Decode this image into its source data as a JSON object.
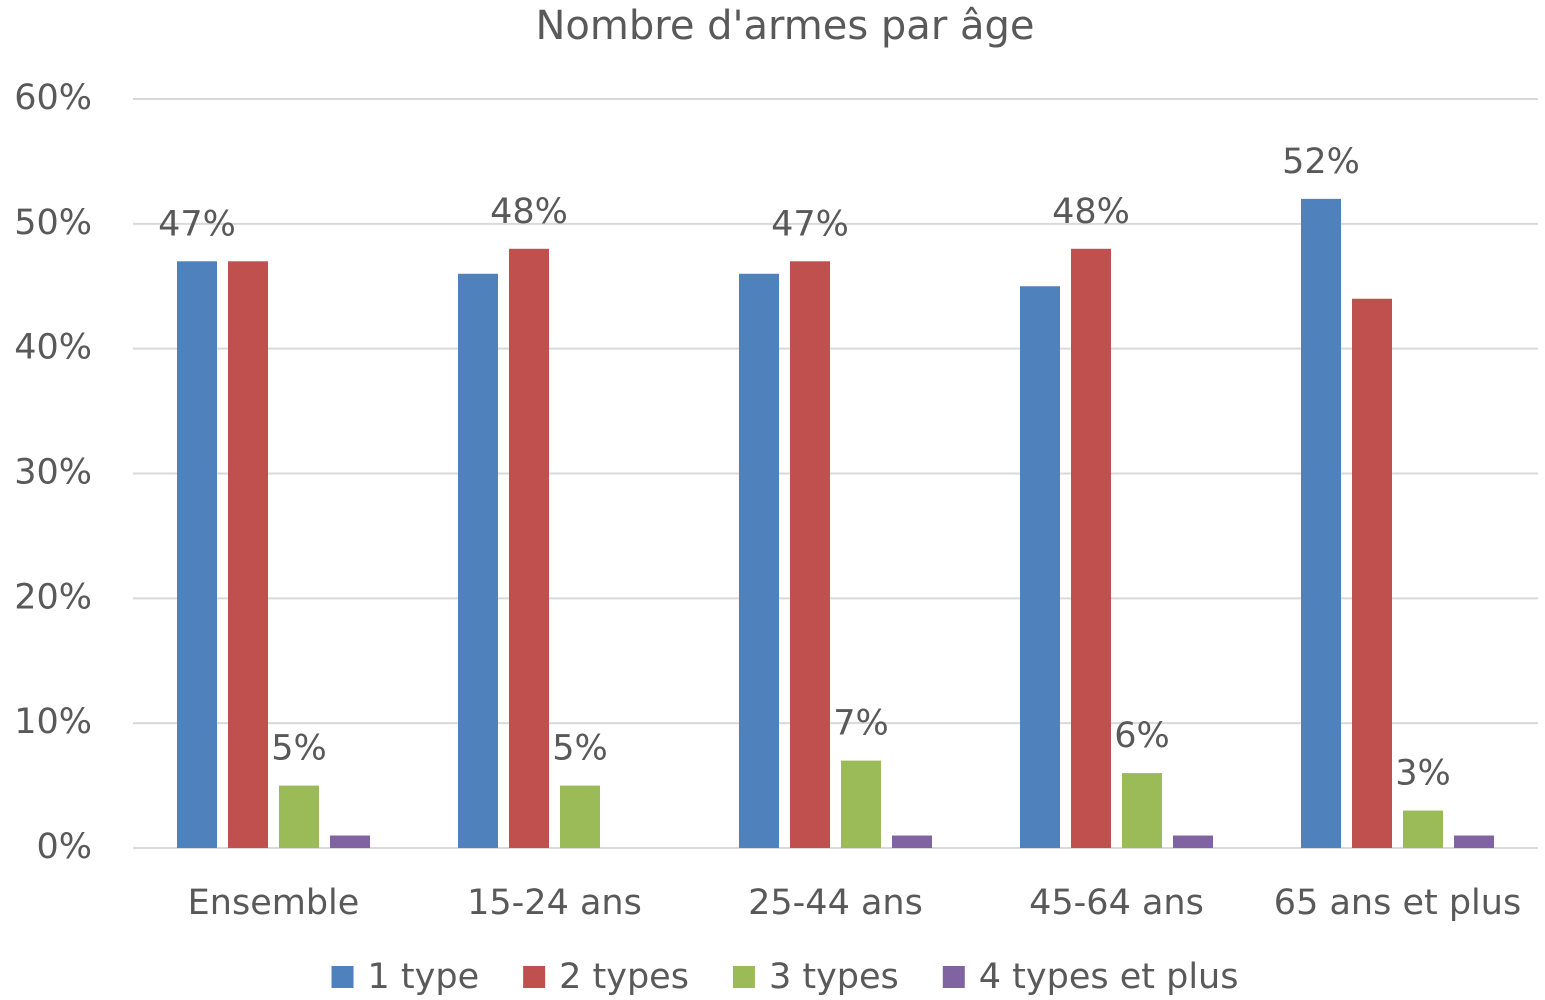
{
  "chart_data": {
    "type": "bar",
    "title": "Nombre d'armes par âge",
    "categories": [
      "Ensemble",
      "15-24 ans",
      "25-44 ans",
      "45-64 ans",
      "65 ans et plus"
    ],
    "series": [
      {
        "name": "1 type",
        "color": "#4f81bd",
        "values": [
          47,
          46,
          46,
          45,
          52
        ],
        "value_labels": [
          "47%",
          null,
          null,
          null,
          "52%"
        ]
      },
      {
        "name": "2 types",
        "color": "#c0504d",
        "values": [
          47,
          48,
          47,
          48,
          44
        ],
        "value_labels": [
          null,
          "48%",
          "47%",
          "48%",
          null
        ]
      },
      {
        "name": "3 types",
        "color": "#9bbb59",
        "values": [
          5,
          5,
          7,
          6,
          3
        ],
        "value_labels": [
          "5%",
          "5%",
          "7%",
          "6%",
          "3%"
        ]
      },
      {
        "name": "4 types et plus",
        "color": "#8064a2",
        "values": [
          1,
          0,
          1,
          1,
          1
        ]
      }
    ],
    "ylim": [
      0,
      60
    ],
    "yticks": [
      {
        "value": 0,
        "label": "0%"
      },
      {
        "value": 10,
        "label": "10%"
      },
      {
        "value": 20,
        "label": "20%"
      },
      {
        "value": 30,
        "label": "30%"
      },
      {
        "value": 40,
        "label": "40%"
      },
      {
        "value": 50,
        "label": "50%"
      },
      {
        "value": 60,
        "label": "60%"
      }
    ],
    "grid": true,
    "legend": "bottom"
  }
}
